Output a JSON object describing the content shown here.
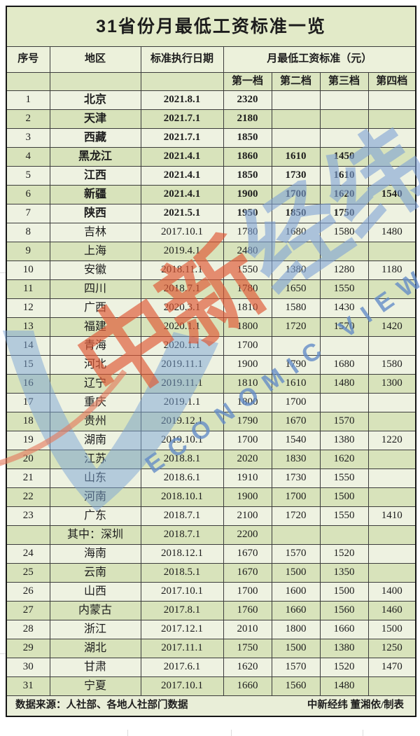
{
  "title": "31省份月最低工资标准一览",
  "header": {
    "seq": "序号",
    "region": "地区",
    "date": "标准执行日期",
    "wage_group": "月最低工资标准（元）",
    "tiers": [
      "第一档",
      "第二档",
      "第三档",
      "第四档"
    ]
  },
  "rows": [
    {
      "seq": "1",
      "region": "北京",
      "date": "2021.8.1",
      "tiers": [
        "2320",
        "",
        "",
        ""
      ],
      "bold": true,
      "shade": "light"
    },
    {
      "seq": "2",
      "region": "天津",
      "date": "2021.7.1",
      "tiers": [
        "2180",
        "",
        "",
        ""
      ],
      "bold": true,
      "shade": "green"
    },
    {
      "seq": "3",
      "region": "西藏",
      "date": "2021.7.1",
      "tiers": [
        "1850",
        "",
        "",
        ""
      ],
      "bold": true,
      "shade": "light"
    },
    {
      "seq": "4",
      "region": "黑龙江",
      "date": "2021.4.1",
      "tiers": [
        "1860",
        "1610",
        "1450",
        ""
      ],
      "bold": true,
      "shade": "green"
    },
    {
      "seq": "5",
      "region": "江西",
      "date": "2021.4.1",
      "tiers": [
        "1850",
        "1730",
        "1610",
        ""
      ],
      "bold": true,
      "shade": "light"
    },
    {
      "seq": "6",
      "region": "新疆",
      "date": "2021.4.1",
      "tiers": [
        "1900",
        "1700",
        "1620",
        "1540"
      ],
      "bold": true,
      "shade": "green"
    },
    {
      "seq": "7",
      "region": "陕西",
      "date": "2021.5.1",
      "tiers": [
        "1950",
        "1850",
        "1750",
        ""
      ],
      "bold": true,
      "shade": "light"
    },
    {
      "seq": "8",
      "region": "吉林",
      "date": "2017.10.1",
      "tiers": [
        "1780",
        "1680",
        "1580",
        "1480"
      ],
      "bold": false,
      "shade": "light"
    },
    {
      "seq": "9",
      "region": "上海",
      "date": "2019.4.1",
      "tiers": [
        "2480",
        "",
        "",
        ""
      ],
      "bold": false,
      "shade": "green"
    },
    {
      "seq": "10",
      "region": "安徽",
      "date": "2018.11.1",
      "tiers": [
        "1550",
        "1380",
        "1280",
        "1180"
      ],
      "bold": false,
      "shade": "light"
    },
    {
      "seq": "11",
      "region": "四川",
      "date": "2018.7.1",
      "tiers": [
        "1780",
        "1650",
        "1550",
        ""
      ],
      "bold": false,
      "shade": "green"
    },
    {
      "seq": "12",
      "region": "广西",
      "date": "2020.3.1",
      "tiers": [
        "1810",
        "1580",
        "1430",
        ""
      ],
      "bold": false,
      "shade": "light"
    },
    {
      "seq": "13",
      "region": "福建",
      "date": "2020.1.1",
      "tiers": [
        "1800",
        "1720",
        "1570",
        "1420"
      ],
      "bold": false,
      "shade": "green"
    },
    {
      "seq": "14",
      "region": "青海",
      "date": "2020.1.1",
      "tiers": [
        "1700",
        "",
        "",
        ""
      ],
      "bold": false,
      "shade": "light"
    },
    {
      "seq": "15",
      "region": "河北",
      "date": "2019.11.1",
      "tiers": [
        "1900",
        "1790",
        "1680",
        "1580"
      ],
      "bold": false,
      "shade": "light"
    },
    {
      "seq": "16",
      "region": "辽宁",
      "date": "2019.11.1",
      "tiers": [
        "1810",
        "1610",
        "1480",
        "1300"
      ],
      "bold": false,
      "shade": "green"
    },
    {
      "seq": "17",
      "region": "重庆",
      "date": "2019.1.1",
      "tiers": [
        "1800",
        "1700",
        "",
        ""
      ],
      "bold": false,
      "shade": "light"
    },
    {
      "seq": "18",
      "region": "贵州",
      "date": "2019.12.1",
      "tiers": [
        "1790",
        "1670",
        "1570",
        ""
      ],
      "bold": false,
      "shade": "green"
    },
    {
      "seq": "19",
      "region": "湖南",
      "date": "2019.10.1",
      "tiers": [
        "1700",
        "1540",
        "1380",
        "1220"
      ],
      "bold": false,
      "shade": "light"
    },
    {
      "seq": "20",
      "region": "江苏",
      "date": "2018.8.1",
      "tiers": [
        "2020",
        "1830",
        "1620",
        ""
      ],
      "bold": false,
      "shade": "green"
    },
    {
      "seq": "21",
      "region": "山东",
      "date": "2018.6.1",
      "tiers": [
        "1910",
        "1730",
        "1550",
        ""
      ],
      "bold": false,
      "shade": "light"
    },
    {
      "seq": "22",
      "region": "河南",
      "date": "2018.10.1",
      "tiers": [
        "1900",
        "1700",
        "1500",
        ""
      ],
      "bold": false,
      "shade": "green"
    },
    {
      "seq": "23",
      "region": "广东",
      "date": "2018.7.1",
      "tiers": [
        "2100",
        "1720",
        "1550",
        "1410"
      ],
      "bold": false,
      "shade": "light"
    },
    {
      "seq": "",
      "region": "其中：深圳",
      "date": "2018.7.1",
      "tiers": [
        "2200",
        "",
        "",
        ""
      ],
      "bold": false,
      "shade": "green"
    },
    {
      "seq": "24",
      "region": "海南",
      "date": "2018.12.1",
      "tiers": [
        "1670",
        "1570",
        "1520",
        ""
      ],
      "bold": false,
      "shade": "light"
    },
    {
      "seq": "25",
      "region": "云南",
      "date": "2018.5.1",
      "tiers": [
        "1670",
        "1500",
        "1350",
        ""
      ],
      "bold": false,
      "shade": "green"
    },
    {
      "seq": "26",
      "region": "山西",
      "date": "2017.10.1",
      "tiers": [
        "1700",
        "1600",
        "1500",
        "1400"
      ],
      "bold": false,
      "shade": "light"
    },
    {
      "seq": "27",
      "region": "内蒙古",
      "date": "2017.8.1",
      "tiers": [
        "1760",
        "1660",
        "1560",
        "1460"
      ],
      "bold": false,
      "shade": "green"
    },
    {
      "seq": "28",
      "region": "浙江",
      "date": "2017.12.1",
      "tiers": [
        "2010",
        "1800",
        "1660",
        "1500"
      ],
      "bold": false,
      "shade": "light"
    },
    {
      "seq": "29",
      "region": "湖北",
      "date": "2017.11.1",
      "tiers": [
        "1750",
        "1500",
        "1380",
        "1250"
      ],
      "bold": false,
      "shade": "green"
    },
    {
      "seq": "30",
      "region": "甘肃",
      "date": "2017.6.1",
      "tiers": [
        "1620",
        "1570",
        "1520",
        "1470"
      ],
      "bold": false,
      "shade": "light"
    },
    {
      "seq": "31",
      "region": "宁夏",
      "date": "2017.10.1",
      "tiers": [
        "1660",
        "1560",
        "1480",
        ""
      ],
      "bold": false,
      "shade": "green"
    }
  ],
  "footer": {
    "source": "数据来源：人社部、各地人社部门数据",
    "credit": "中新经纬 董湘依/制表"
  },
  "watermark": {
    "cjk_red": "中新",
    "cjk_blue": "经纬",
    "latin": "ECONOMIC VIEW"
  },
  "colors": {
    "row_light": "#eef2e1",
    "row_green": "#d8e3bb",
    "title_bg": "#e2eac8",
    "header_bg": "#ecf1db",
    "subheader_bg": "#dbe5c0",
    "watermark_red": "#df5634",
    "watermark_blue": "#7ea2d5"
  }
}
